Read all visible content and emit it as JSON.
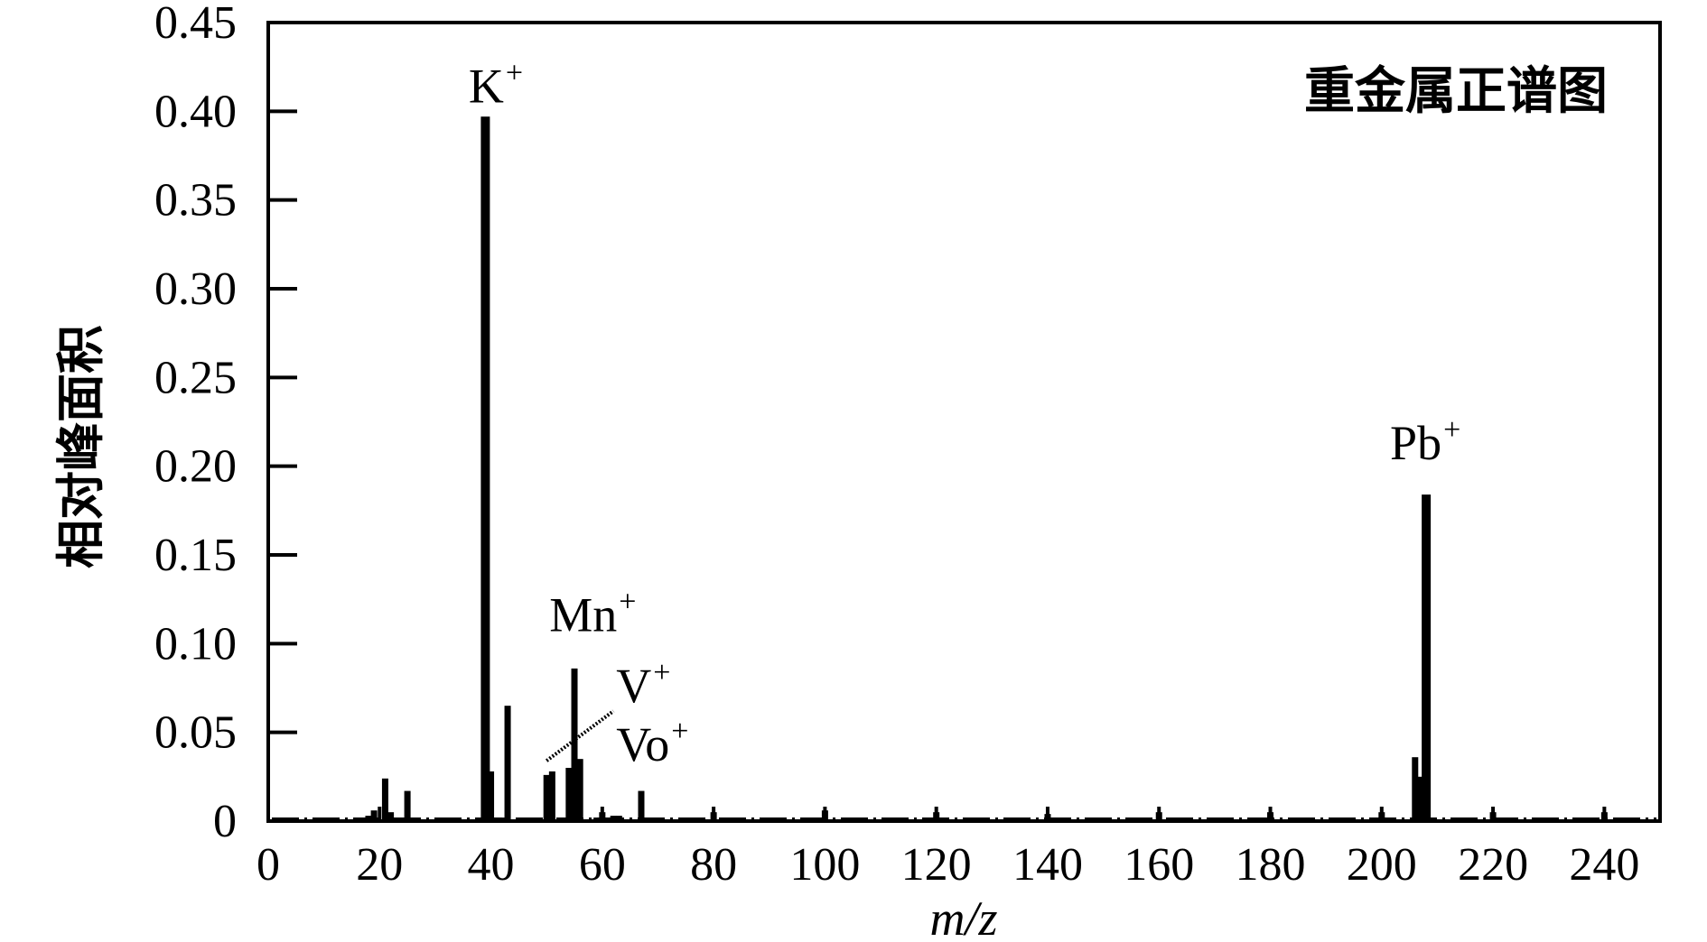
{
  "chart_data": {
    "type": "bar",
    "title": "",
    "legend_text": "重金属正谱图",
    "xlabel": "m/z",
    "ylabel": "相对峰面积",
    "xlim": [
      0,
      250
    ],
    "ylim": [
      0,
      0.45
    ],
    "x_ticks": [
      0,
      20,
      40,
      60,
      80,
      100,
      120,
      140,
      160,
      180,
      200,
      220,
      240
    ],
    "y_ticks": [
      0,
      0.05,
      0.1,
      0.15,
      0.2,
      0.25,
      0.3,
      0.35,
      0.4,
      0.45
    ],
    "y_tick_labels": [
      "0",
      "0.05",
      "0.10",
      "0.15",
      "0.20",
      "0.25",
      "0.30",
      "0.35",
      "0.40",
      "0.45"
    ],
    "grid": false,
    "legend_position": "top-right",
    "peaks": [
      {
        "x": 2,
        "y": 0.002
      },
      {
        "x": 16,
        "y": 0.002
      },
      {
        "x": 18,
        "y": 0.003
      },
      {
        "x": 19,
        "y": 0.006
      },
      {
        "x": 21,
        "y": 0.024
      },
      {
        "x": 22,
        "y": 0.005
      },
      {
        "x": 25,
        "y": 0.017
      },
      {
        "x": 38,
        "y": 0.002
      },
      {
        "x": 39,
        "y": 0.397
      },
      {
        "x": 40,
        "y": 0.028
      },
      {
        "x": 42,
        "y": 0.002
      },
      {
        "x": 43,
        "y": 0.065
      },
      {
        "x": 50,
        "y": 0.026
      },
      {
        "x": 51,
        "y": 0.028
      },
      {
        "x": 54,
        "y": 0.03
      },
      {
        "x": 55,
        "y": 0.086
      },
      {
        "x": 56,
        "y": 0.035
      },
      {
        "x": 59,
        "y": 0.002
      },
      {
        "x": 60,
        "y": 0.005
      },
      {
        "x": 62,
        "y": 0.003
      },
      {
        "x": 63,
        "y": 0.003
      },
      {
        "x": 67,
        "y": 0.017
      },
      {
        "x": 77,
        "y": 0.002
      },
      {
        "x": 80,
        "y": 0.005
      },
      {
        "x": 100,
        "y": 0.006
      },
      {
        "x": 120,
        "y": 0.005
      },
      {
        "x": 140,
        "y": 0.004
      },
      {
        "x": 160,
        "y": 0.005
      },
      {
        "x": 180,
        "y": 0.005
      },
      {
        "x": 200,
        "y": 0.005
      },
      {
        "x": 206,
        "y": 0.036
      },
      {
        "x": 207,
        "y": 0.025
      },
      {
        "x": 208,
        "y": 0.184
      },
      {
        "x": 220,
        "y": 0.005
      },
      {
        "x": 240,
        "y": 0.005
      }
    ],
    "annotations": [
      {
        "text": "K",
        "sup": "+",
        "x": 36,
        "y": 0.405
      },
      {
        "text": "Mn",
        "sup": "+",
        "x": 50.5,
        "y": 0.107
      },
      {
        "text": "V",
        "sup": "+",
        "x": 62.5,
        "y": 0.067
      },
      {
        "text": "Vo",
        "sup": "+",
        "x": 62.5,
        "y": 0.034
      },
      {
        "text": "Pb",
        "sup": "+",
        "x": 201.5,
        "y": 0.204
      }
    ],
    "connector": {
      "from": [
        50,
        0.034
      ],
      "to": [
        62,
        0.062
      ]
    }
  }
}
